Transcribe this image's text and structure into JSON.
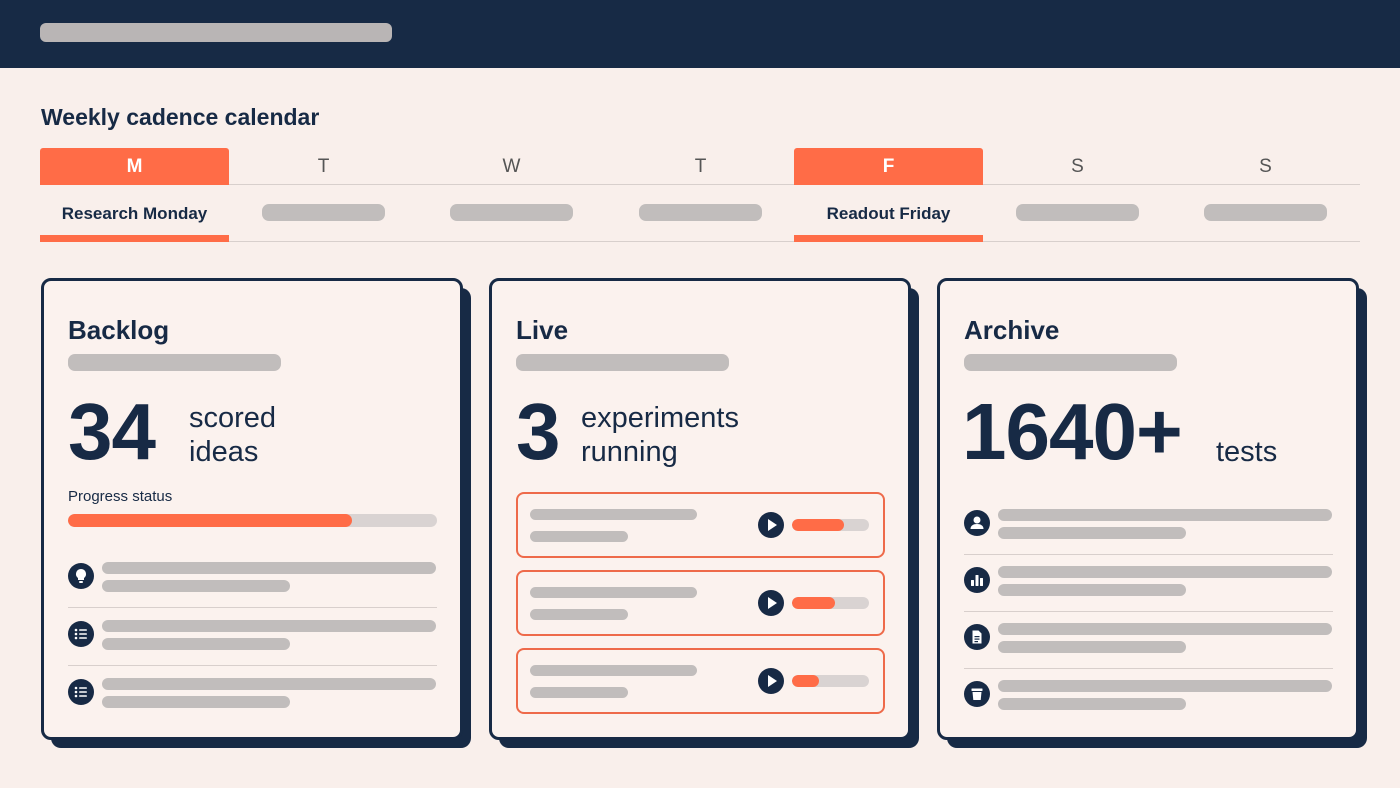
{
  "calendar": {
    "title": "Weekly cadence calendar",
    "days": [
      {
        "letter": "M",
        "label": "Research Monday",
        "active": true
      },
      {
        "letter": "T",
        "label": "",
        "active": false
      },
      {
        "letter": "W",
        "label": "",
        "active": false
      },
      {
        "letter": "T",
        "label": "",
        "active": false
      },
      {
        "letter": "F",
        "label": "Readout Friday",
        "active": true
      },
      {
        "letter": "S",
        "label": "",
        "active": false
      },
      {
        "letter": "S",
        "label": "",
        "active": false
      }
    ]
  },
  "backlog": {
    "title": "Backlog",
    "count": "34",
    "caption_line1": "scored",
    "caption_line2": "ideas",
    "progress_label": "Progress status",
    "progress": 0.77,
    "items": [
      {
        "icon": "lightbulb-icon"
      },
      {
        "icon": "list-icon"
      },
      {
        "icon": "list-icon"
      }
    ]
  },
  "live": {
    "title": "Live",
    "count": "3",
    "caption_line1": "experiments",
    "caption_line2": "running",
    "runs": [
      {
        "icon": "play-icon",
        "progress": 0.68
      },
      {
        "icon": "play-icon",
        "progress": 0.56
      },
      {
        "icon": "play-icon",
        "progress": 0.35
      }
    ]
  },
  "archive": {
    "title": "Archive",
    "count": "1640+",
    "caption": "tests",
    "items": [
      {
        "icon": "user-icon"
      },
      {
        "icon": "bar-chart-icon"
      },
      {
        "icon": "document-icon"
      },
      {
        "icon": "trash-icon"
      }
    ]
  },
  "colors": {
    "navy": "#172a45",
    "accent": "#ff6c47",
    "background": "#f9efeb"
  }
}
